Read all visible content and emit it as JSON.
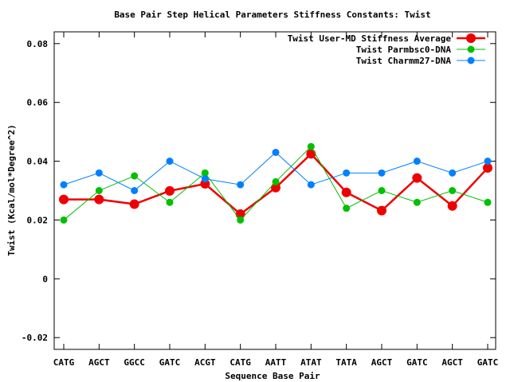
{
  "chart_data": {
    "type": "line",
    "title": "Base Pair Step Helical Parameters Stiffness Constants: Twist",
    "xlabel": "Sequence Base Pair",
    "ylabel": "Twist (Kcal/mol*Degree^2)",
    "categories": [
      "CATG",
      "AGCT",
      "GGCC",
      "GATC",
      "ACGT",
      "CATG",
      "AATT",
      "ATAT",
      "TATA",
      "AGCT",
      "GATC",
      "AGCT",
      "GATC"
    ],
    "ylim": [
      -0.024,
      0.084
    ],
    "yticks": [
      -0.02,
      0,
      0.02,
      0.04,
      0.06,
      0.08
    ],
    "ytick_labels": [
      "-0.02",
      "0",
      "0.02",
      "0.04",
      "0.06",
      "0.08"
    ],
    "grid": false,
    "legend_position": "top-right",
    "series": [
      {
        "name": "Twist User-MD Stiffness Average",
        "color": "#ee0000",
        "values": [
          0.027,
          0.027,
          0.0254,
          0.0299,
          0.0323,
          0.022,
          0.031,
          0.0425,
          0.0294,
          0.0232,
          0.0343,
          0.0248,
          0.0377
        ]
      },
      {
        "name": "Twist Parmbsc0-DNA",
        "color": "#00c000",
        "values": [
          0.02,
          0.03,
          0.035,
          0.026,
          0.036,
          0.02,
          0.033,
          0.045,
          0.024,
          0.03,
          0.026,
          0.03,
          0.026
        ]
      },
      {
        "name": "Twist Charmm27-DNA",
        "color": "#0080ff",
        "values": [
          0.032,
          0.036,
          0.03,
          0.04,
          0.034,
          0.032,
          0.043,
          0.032,
          0.036,
          0.036,
          0.04,
          0.036,
          0.04
        ]
      }
    ]
  }
}
